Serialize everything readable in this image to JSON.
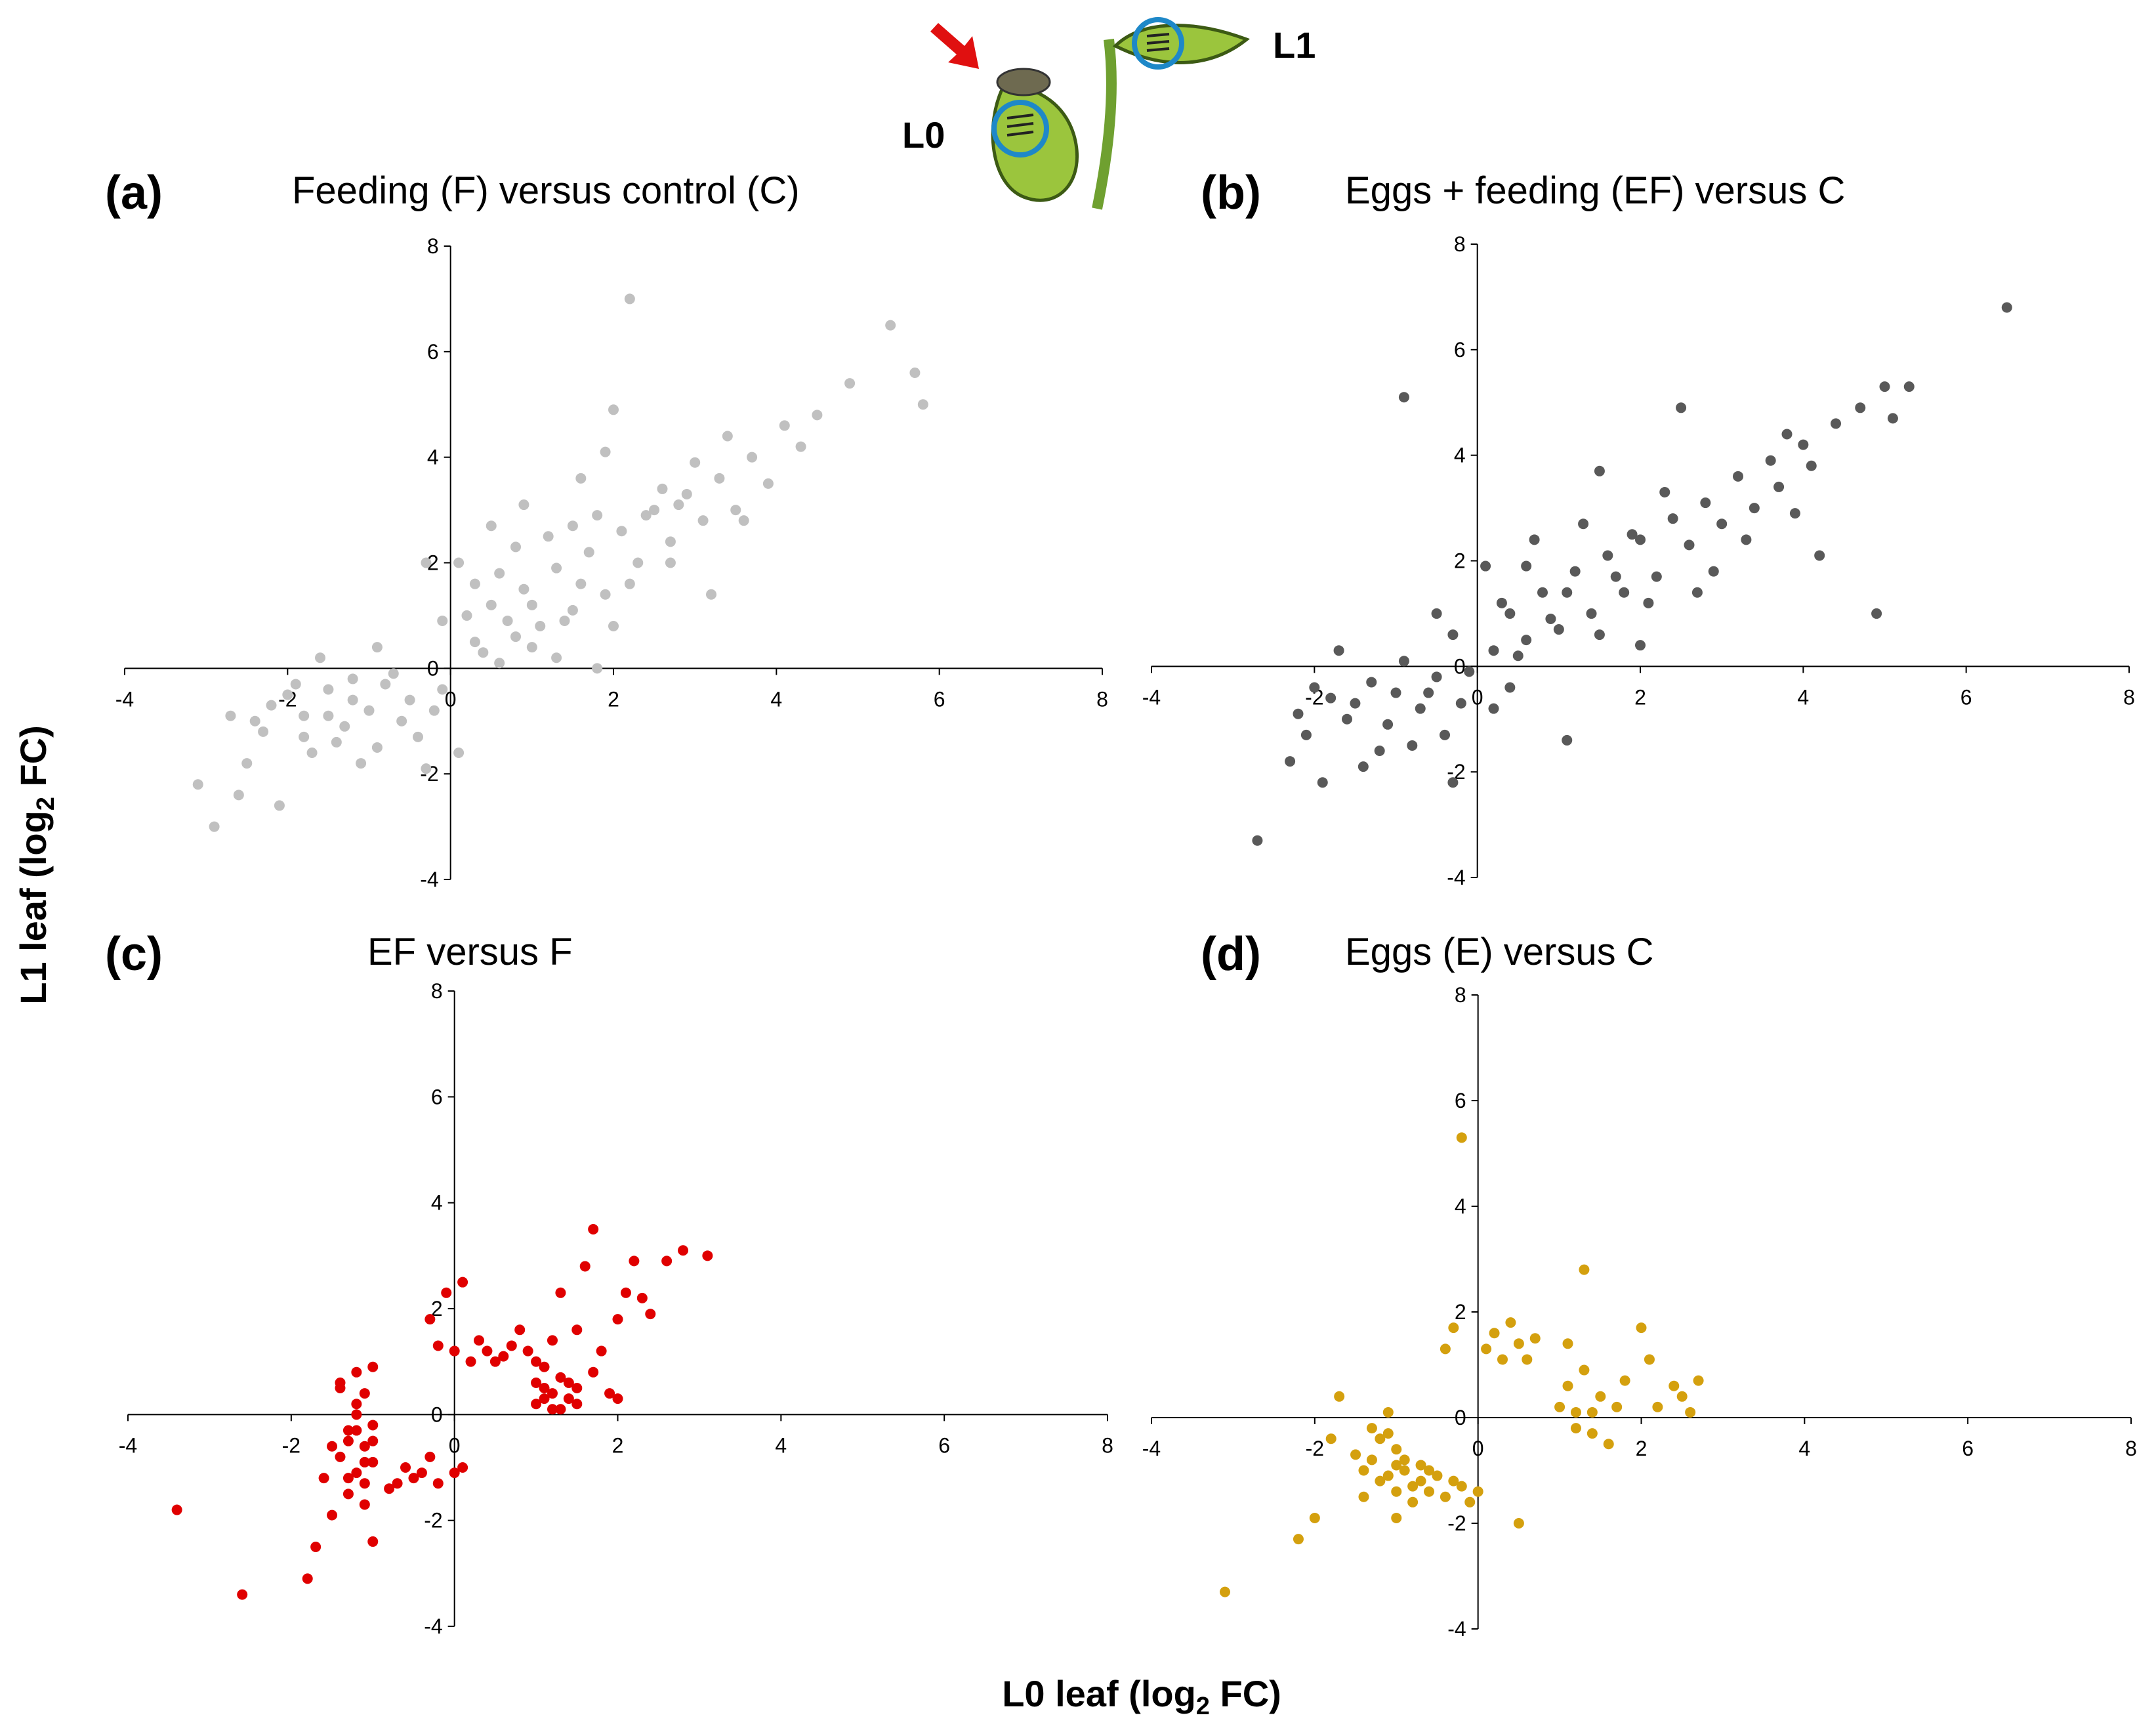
{
  "figure": {
    "ylabel": "L1 leaf (log",
    "ylabel_sub": "2",
    "ylabel_end": " FC)",
    "xlabel": "L0 leaf (log",
    "xlabel_sub": "2",
    "xlabel_end": " FC)",
    "diagram": {
      "label_l0": "L0",
      "label_l1": "L1",
      "leaf_color": "#9BC53D",
      "circle_color": "#1E88C8",
      "arrow_color": "#E01010"
    }
  },
  "chart_data": [
    {
      "type": "scatter",
      "letter": "(a)",
      "title": "Feeding (F) versus control (C)",
      "color": "#C0C0C0",
      "xlim": [
        -4,
        8
      ],
      "ylim": [
        -4,
        8
      ],
      "xticks": [
        "-4",
        "-2",
        "0",
        "2",
        "4",
        "6",
        "8"
      ],
      "yticks": [
        "-4",
        "-2",
        "0",
        "2",
        "4",
        "6",
        "8"
      ],
      "points": [
        [
          -3.1,
          -2.2
        ],
        [
          -2.9,
          -3.0
        ],
        [
          -2.6,
          -2.4
        ],
        [
          -2.5,
          -1.8
        ],
        [
          -2.1,
          -2.6
        ],
        [
          -2.3,
          -1.2
        ],
        [
          -2.0,
          -0.5
        ],
        [
          -1.8,
          -0.9
        ],
        [
          -1.7,
          -1.6
        ],
        [
          -1.5,
          -0.4
        ],
        [
          -1.3,
          -1.1
        ],
        [
          -1.2,
          -0.2
        ],
        [
          -1.0,
          -0.8
        ],
        [
          -0.9,
          -1.5
        ],
        [
          -0.8,
          -0.3
        ],
        [
          -0.6,
          -1.0
        ],
        [
          -0.5,
          -0.6
        ],
        [
          -0.3,
          -1.9
        ],
        [
          -0.2,
          -0.8
        ],
        [
          -1.6,
          0.2
        ],
        [
          -2.4,
          -1.0
        ],
        [
          -1.9,
          -0.3
        ],
        [
          -1.4,
          -1.4
        ],
        [
          -1.1,
          -1.8
        ],
        [
          -0.7,
          -0.1
        ],
        [
          -0.4,
          -1.3
        ],
        [
          -1.5,
          -0.9
        ],
        [
          -2.2,
          -0.7
        ],
        [
          -1.8,
          -1.3
        ],
        [
          -1.2,
          -0.6
        ],
        [
          0.3,
          0.5
        ],
        [
          0.5,
          1.2
        ],
        [
          0.7,
          0.9
        ],
        [
          0.9,
          1.5
        ],
        [
          1.1,
          0.8
        ],
        [
          1.3,
          1.9
        ],
        [
          1.5,
          1.1
        ],
        [
          1.7,
          2.2
        ],
        [
          1.9,
          1.4
        ],
        [
          2.1,
          2.6
        ],
        [
          2.3,
          2.0
        ],
        [
          2.5,
          3.0
        ],
        [
          2.7,
          2.4
        ],
        [
          2.9,
          3.3
        ],
        [
          3.1,
          2.8
        ],
        [
          3.3,
          3.6
        ],
        [
          3.5,
          3.0
        ],
        [
          3.7,
          4.0
        ],
        [
          3.9,
          3.5
        ],
        [
          4.1,
          4.6
        ],
        [
          4.3,
          4.2
        ],
        [
          4.5,
          4.8
        ],
        [
          4.9,
          5.4
        ],
        [
          5.4,
          6.5
        ],
        [
          5.7,
          5.6
        ],
        [
          5.8,
          5.0
        ],
        [
          2.2,
          7.0
        ],
        [
          0.1,
          2.0
        ],
        [
          0.2,
          1.0
        ],
        [
          0.4,
          0.3
        ],
        [
          0.6,
          1.8
        ],
        [
          0.8,
          0.6
        ],
        [
          1.0,
          1.2
        ],
        [
          1.2,
          2.5
        ],
        [
          1.4,
          0.9
        ],
        [
          1.6,
          1.6
        ],
        [
          1.8,
          2.9
        ],
        [
          2.0,
          0.8
        ],
        [
          2.2,
          1.6
        ],
        [
          2.4,
          2.9
        ],
        [
          2.6,
          3.4
        ],
        [
          2.8,
          3.1
        ],
        [
          3.0,
          3.9
        ],
        [
          3.4,
          4.4
        ],
        [
          3.2,
          1.4
        ],
        [
          2.0,
          4.9
        ],
        [
          1.6,
          3.6
        ],
        [
          0.9,
          3.1
        ],
        [
          -0.3,
          2.0
        ],
        [
          -0.1,
          0.9
        ],
        [
          0.3,
          1.6
        ],
        [
          0.6,
          0.1
        ],
        [
          1.0,
          0.4
        ],
        [
          1.8,
          0.0
        ],
        [
          0.8,
          2.3
        ],
        [
          1.5,
          2.7
        ],
        [
          2.7,
          2.0
        ],
        [
          3.6,
          2.8
        ],
        [
          -0.1,
          -0.4
        ],
        [
          -2.7,
          -0.9
        ],
        [
          -0.9,
          0.4
        ],
        [
          0.1,
          -1.6
        ],
        [
          1.3,
          0.2
        ],
        [
          0.5,
          2.7
        ],
        [
          1.9,
          4.1
        ]
      ]
    },
    {
      "type": "scatter",
      "letter": "(b)",
      "title": "Eggs + feeding (EF) versus C",
      "color": "#595959",
      "xlim": [
        -4,
        8
      ],
      "ylim": [
        -4,
        8
      ],
      "xticks": [
        "-4",
        "-2",
        "0",
        "2",
        "4",
        "6",
        "8"
      ],
      "yticks": [
        "-4",
        "-2",
        "0",
        "2",
        "4",
        "6",
        "8"
      ],
      "points": [
        [
          -2.7,
          -3.3
        ],
        [
          -2.3,
          -1.8
        ],
        [
          -2.1,
          -1.3
        ],
        [
          -1.9,
          -2.2
        ],
        [
          -1.8,
          -0.6
        ],
        [
          -1.6,
          -1.0
        ],
        [
          -1.4,
          -1.9
        ],
        [
          -1.3,
          -0.3
        ],
        [
          -1.1,
          -1.1
        ],
        [
          -1.0,
          -0.5
        ],
        [
          -0.8,
          -1.5
        ],
        [
          -0.7,
          -0.8
        ],
        [
          -0.5,
          -0.2
        ],
        [
          -0.4,
          -1.3
        ],
        [
          -0.3,
          -2.2
        ],
        [
          -0.2,
          -0.7
        ],
        [
          -0.1,
          -0.1
        ],
        [
          -1.5,
          -0.7
        ],
        [
          -2.0,
          -0.4
        ],
        [
          -1.2,
          -1.6
        ],
        [
          -0.6,
          -0.5
        ],
        [
          -1.7,
          0.3
        ],
        [
          -2.2,
          -0.9
        ],
        [
          -0.9,
          0.1
        ],
        [
          -0.3,
          0.6
        ],
        [
          0.2,
          0.3
        ],
        [
          0.4,
          1.0
        ],
        [
          0.6,
          0.5
        ],
        [
          0.8,
          1.4
        ],
        [
          1.0,
          0.7
        ],
        [
          1.2,
          1.8
        ],
        [
          1.4,
          1.0
        ],
        [
          1.6,
          2.1
        ],
        [
          1.8,
          1.4
        ],
        [
          2.0,
          2.4
        ],
        [
          2.2,
          1.7
        ],
        [
          2.4,
          2.8
        ],
        [
          2.6,
          2.3
        ],
        [
          2.8,
          3.1
        ],
        [
          3.0,
          2.7
        ],
        [
          3.2,
          3.6
        ],
        [
          3.4,
          3.0
        ],
        [
          3.6,
          3.9
        ],
        [
          3.8,
          4.4
        ],
        [
          4.0,
          4.2
        ],
        [
          4.2,
          2.1
        ],
        [
          4.4,
          4.6
        ],
        [
          4.7,
          4.9
        ],
        [
          4.9,
          1.0
        ],
        [
          5.0,
          5.3
        ],
        [
          5.1,
          4.7
        ],
        [
          5.3,
          5.3
        ],
        [
          6.5,
          6.8
        ],
        [
          -0.9,
          5.1
        ],
        [
          0.1,
          1.9
        ],
        [
          0.3,
          1.2
        ],
        [
          0.5,
          0.2
        ],
        [
          0.7,
          2.4
        ],
        [
          0.9,
          0.9
        ],
        [
          1.1,
          1.4
        ],
        [
          1.3,
          2.7
        ],
        [
          1.5,
          0.6
        ],
        [
          1.7,
          1.7
        ],
        [
          1.9,
          2.5
        ],
        [
          2.1,
          1.2
        ],
        [
          2.3,
          3.3
        ],
        [
          2.5,
          4.9
        ],
        [
          2.9,
          1.8
        ],
        [
          3.3,
          2.4
        ],
        [
          3.7,
          3.4
        ],
        [
          4.1,
          3.8
        ],
        [
          1.1,
          -1.4
        ],
        [
          0.2,
          -0.8
        ],
        [
          -0.5,
          1.0
        ],
        [
          0.6,
          1.9
        ],
        [
          1.5,
          3.7
        ],
        [
          2.0,
          0.4
        ],
        [
          0.4,
          -0.4
        ],
        [
          2.7,
          1.4
        ],
        [
          3.9,
          2.9
        ]
      ]
    },
    {
      "type": "scatter",
      "letter": "(c)",
      "title": "EF versus F",
      "color": "#E00000",
      "xlim": [
        -4,
        8
      ],
      "ylim": [
        -4,
        8
      ],
      "xticks": [
        "-4",
        "-2",
        "0",
        "2",
        "4",
        "6",
        "8"
      ],
      "yticks": [
        "-4",
        "-2",
        "0",
        "2",
        "4",
        "6",
        "8"
      ],
      "points": [
        [
          -3.4,
          -1.8
        ],
        [
          -2.6,
          -3.4
        ],
        [
          -1.8,
          -3.1
        ],
        [
          -1.7,
          -2.5
        ],
        [
          -1.6,
          -1.2
        ],
        [
          -1.5,
          -0.6
        ],
        [
          -1.4,
          0.6
        ],
        [
          -1.3,
          -1.5
        ],
        [
          -1.2,
          0.2
        ],
        [
          -1.1,
          -0.9
        ],
        [
          -1.0,
          0.9
        ],
        [
          -1.0,
          -2.4
        ],
        [
          -1.5,
          -1.9
        ],
        [
          -1.3,
          -0.3
        ],
        [
          -1.2,
          -1.1
        ],
        [
          -1.1,
          0.4
        ],
        [
          -1.0,
          -0.5
        ],
        [
          -1.4,
          -0.8
        ],
        [
          -1.1,
          -1.7
        ],
        [
          -1.2,
          0.8
        ],
        [
          -0.8,
          -1.4
        ],
        [
          -0.7,
          -1.3
        ],
        [
          -0.6,
          -1.0
        ],
        [
          -0.5,
          -1.2
        ],
        [
          -0.4,
          -1.1
        ],
        [
          -0.3,
          -0.8
        ],
        [
          -0.2,
          -1.3
        ],
        [
          0.0,
          -1.1
        ],
        [
          0.1,
          -1.0
        ],
        [
          -0.3,
          1.8
        ],
        [
          -0.2,
          1.3
        ],
        [
          -0.1,
          2.3
        ],
        [
          0.0,
          1.2
        ],
        [
          0.1,
          2.5
        ],
        [
          0.2,
          1.0
        ],
        [
          0.3,
          1.4
        ],
        [
          0.4,
          1.2
        ],
        [
          0.5,
          1.0
        ],
        [
          0.6,
          1.1
        ],
        [
          0.7,
          1.3
        ],
        [
          0.8,
          1.6
        ],
        [
          0.9,
          1.2
        ],
        [
          1.0,
          0.6
        ],
        [
          1.0,
          1.0
        ],
        [
          1.1,
          0.3
        ],
        [
          1.1,
          0.9
        ],
        [
          1.2,
          0.4
        ],
        [
          1.2,
          1.4
        ],
        [
          1.3,
          0.1
        ],
        [
          1.3,
          2.3
        ],
        [
          1.4,
          0.6
        ],
        [
          1.5,
          1.6
        ],
        [
          1.5,
          0.2
        ],
        [
          1.6,
          2.8
        ],
        [
          1.7,
          0.8
        ],
        [
          1.7,
          3.5
        ],
        [
          1.8,
          1.2
        ],
        [
          1.9,
          0.4
        ],
        [
          2.0,
          0.3
        ],
        [
          2.0,
          1.8
        ],
        [
          2.1,
          2.3
        ],
        [
          2.2,
          2.9
        ],
        [
          2.3,
          2.2
        ],
        [
          2.4,
          1.9
        ],
        [
          2.6,
          2.9
        ],
        [
          2.8,
          3.1
        ],
        [
          3.1,
          3.0
        ],
        [
          1.1,
          0.5
        ],
        [
          1.2,
          0.1
        ],
        [
          1.0,
          0.2
        ],
        [
          1.4,
          0.3
        ],
        [
          1.3,
          0.7
        ],
        [
          1.5,
          0.5
        ],
        [
          -1.2,
          -0.3
        ],
        [
          -1.1,
          -0.6
        ],
        [
          -1.3,
          -0.5
        ],
        [
          -1.0,
          -0.2
        ],
        [
          -1.4,
          0.5
        ],
        [
          -1.2,
          0.0
        ],
        [
          -1.1,
          -1.3
        ],
        [
          -1.0,
          -0.9
        ],
        [
          -1.3,
          -1.2
        ]
      ]
    },
    {
      "type": "scatter",
      "letter": "(d)",
      "title": "Eggs (E) versus C",
      "color": "#D4A00E",
      "xlim": [
        -4,
        8
      ],
      "ylim": [
        -4,
        8
      ],
      "xticks": [
        "-4",
        "-2",
        "0",
        "2",
        "4",
        "6",
        "8"
      ],
      "yticks": [
        "-4",
        "-2",
        "0",
        "2",
        "4",
        "6",
        "8"
      ],
      "points": [
        [
          -3.1,
          -3.3
        ],
        [
          -2.2,
          -2.3
        ],
        [
          -2.0,
          -1.9
        ],
        [
          -1.8,
          -0.4
        ],
        [
          -1.7,
          0.4
        ],
        [
          -1.5,
          -0.7
        ],
        [
          -1.4,
          -1.5
        ],
        [
          -1.3,
          -0.8
        ],
        [
          -1.2,
          -1.2
        ],
        [
          -1.1,
          -0.3
        ],
        [
          -1.0,
          -1.9
        ],
        [
          -1.0,
          -0.6
        ],
        [
          -0.9,
          -1.0
        ],
        [
          -0.8,
          -1.6
        ],
        [
          -0.7,
          -1.2
        ],
        [
          -0.6,
          -1.4
        ],
        [
          -0.5,
          -1.1
        ],
        [
          -0.4,
          -1.5
        ],
        [
          -0.3,
          -1.2
        ],
        [
          -0.2,
          -1.3
        ],
        [
          -0.1,
          -1.6
        ],
        [
          0.0,
          -1.4
        ],
        [
          -1.1,
          0.1
        ],
        [
          -1.2,
          -0.4
        ],
        [
          -1.0,
          -0.9
        ],
        [
          -0.8,
          -1.3
        ],
        [
          -0.4,
          1.3
        ],
        [
          -0.3,
          1.7
        ],
        [
          -0.2,
          5.3
        ],
        [
          0.1,
          1.3
        ],
        [
          0.2,
          1.6
        ],
        [
          0.3,
          1.1
        ],
        [
          0.4,
          1.8
        ],
        [
          0.5,
          1.4
        ],
        [
          0.6,
          1.1
        ],
        [
          0.7,
          1.5
        ],
        [
          0.5,
          -2.0
        ],
        [
          1.0,
          0.2
        ],
        [
          1.1,
          0.6
        ],
        [
          1.1,
          1.4
        ],
        [
          1.2,
          -0.2
        ],
        [
          1.3,
          0.9
        ],
        [
          1.3,
          2.8
        ],
        [
          1.4,
          0.1
        ],
        [
          1.5,
          0.4
        ],
        [
          1.6,
          -0.5
        ],
        [
          1.7,
          0.2
        ],
        [
          1.8,
          0.7
        ],
        [
          2.0,
          1.7
        ],
        [
          2.1,
          1.1
        ],
        [
          2.2,
          0.2
        ],
        [
          2.4,
          0.6
        ],
        [
          2.5,
          0.4
        ],
        [
          2.6,
          0.1
        ],
        [
          2.7,
          0.7
        ],
        [
          1.2,
          0.1
        ],
        [
          1.4,
          -0.3
        ],
        [
          -1.3,
          -0.2
        ],
        [
          -1.1,
          -1.1
        ],
        [
          -0.9,
          -0.8
        ],
        [
          -0.6,
          -1.0
        ],
        [
          -1.0,
          -1.4
        ],
        [
          -0.7,
          -0.9
        ],
        [
          -1.4,
          -1.0
        ]
      ]
    }
  ]
}
